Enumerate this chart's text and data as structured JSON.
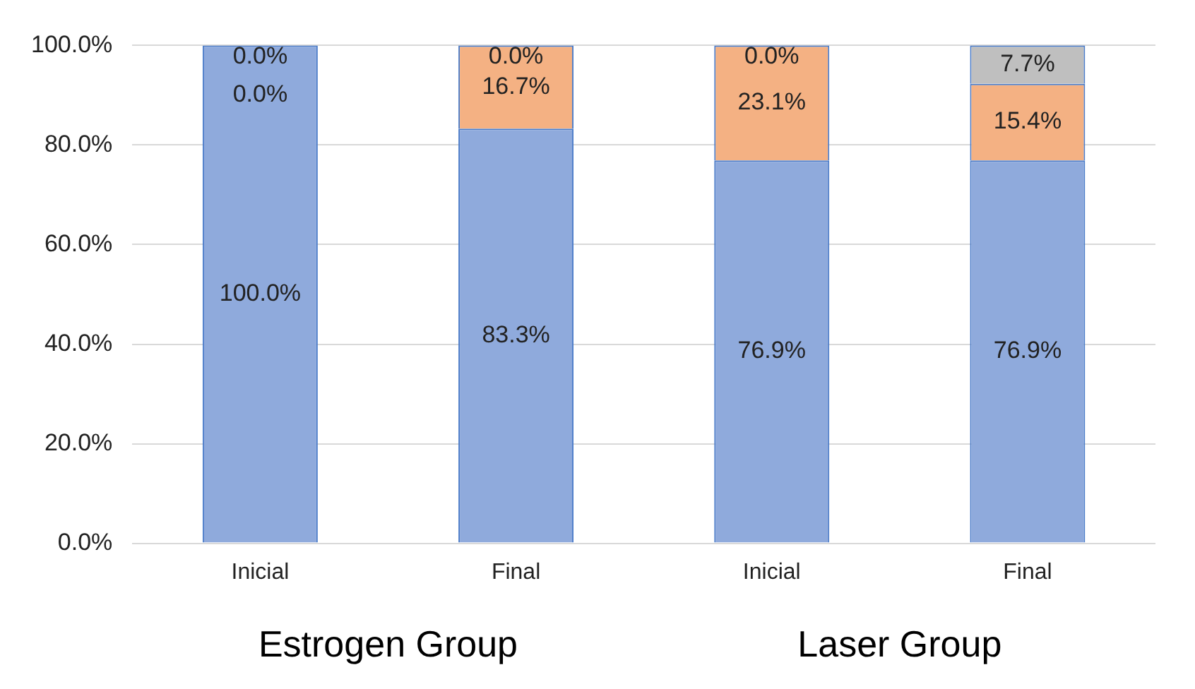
{
  "chart_data": {
    "type": "bar",
    "stacked": true,
    "categories": [
      "Inicial",
      "Final",
      "Inicial",
      "Final"
    ],
    "series": [
      {
        "color": "#8faadc",
        "values": [
          100,
          83.3,
          76.9,
          76.9
        ],
        "value_labels": [
          "100.0%",
          "83.3%",
          "76.9%",
          "76.9%"
        ]
      },
      {
        "color": "#f4b183",
        "values": [
          0,
          16.7,
          23.1,
          15.4
        ],
        "value_labels": [
          "0.0%",
          "16.7%",
          "23.1%",
          "15.4%"
        ]
      },
      {
        "color": "#bfbfbf",
        "values": [
          0,
          0,
          0,
          7.7
        ],
        "value_labels": [
          "0.0%",
          "0.0%",
          "0.0%",
          "7.7%"
        ]
      }
    ],
    "ylim": [
      0,
      100
    ],
    "yticks": [
      {
        "value": 0,
        "label": "0.0%"
      },
      {
        "value": 20,
        "label": "20.0%"
      },
      {
        "value": 40,
        "label": "40.0%"
      },
      {
        "value": 60,
        "label": "60.0%"
      },
      {
        "value": 80,
        "label": "80.0%"
      },
      {
        "value": 100,
        "label": "100.0%"
      }
    ],
    "grid": "y",
    "legend": false,
    "annotations": [
      "Estrogen Group",
      "Laser Group"
    ]
  }
}
